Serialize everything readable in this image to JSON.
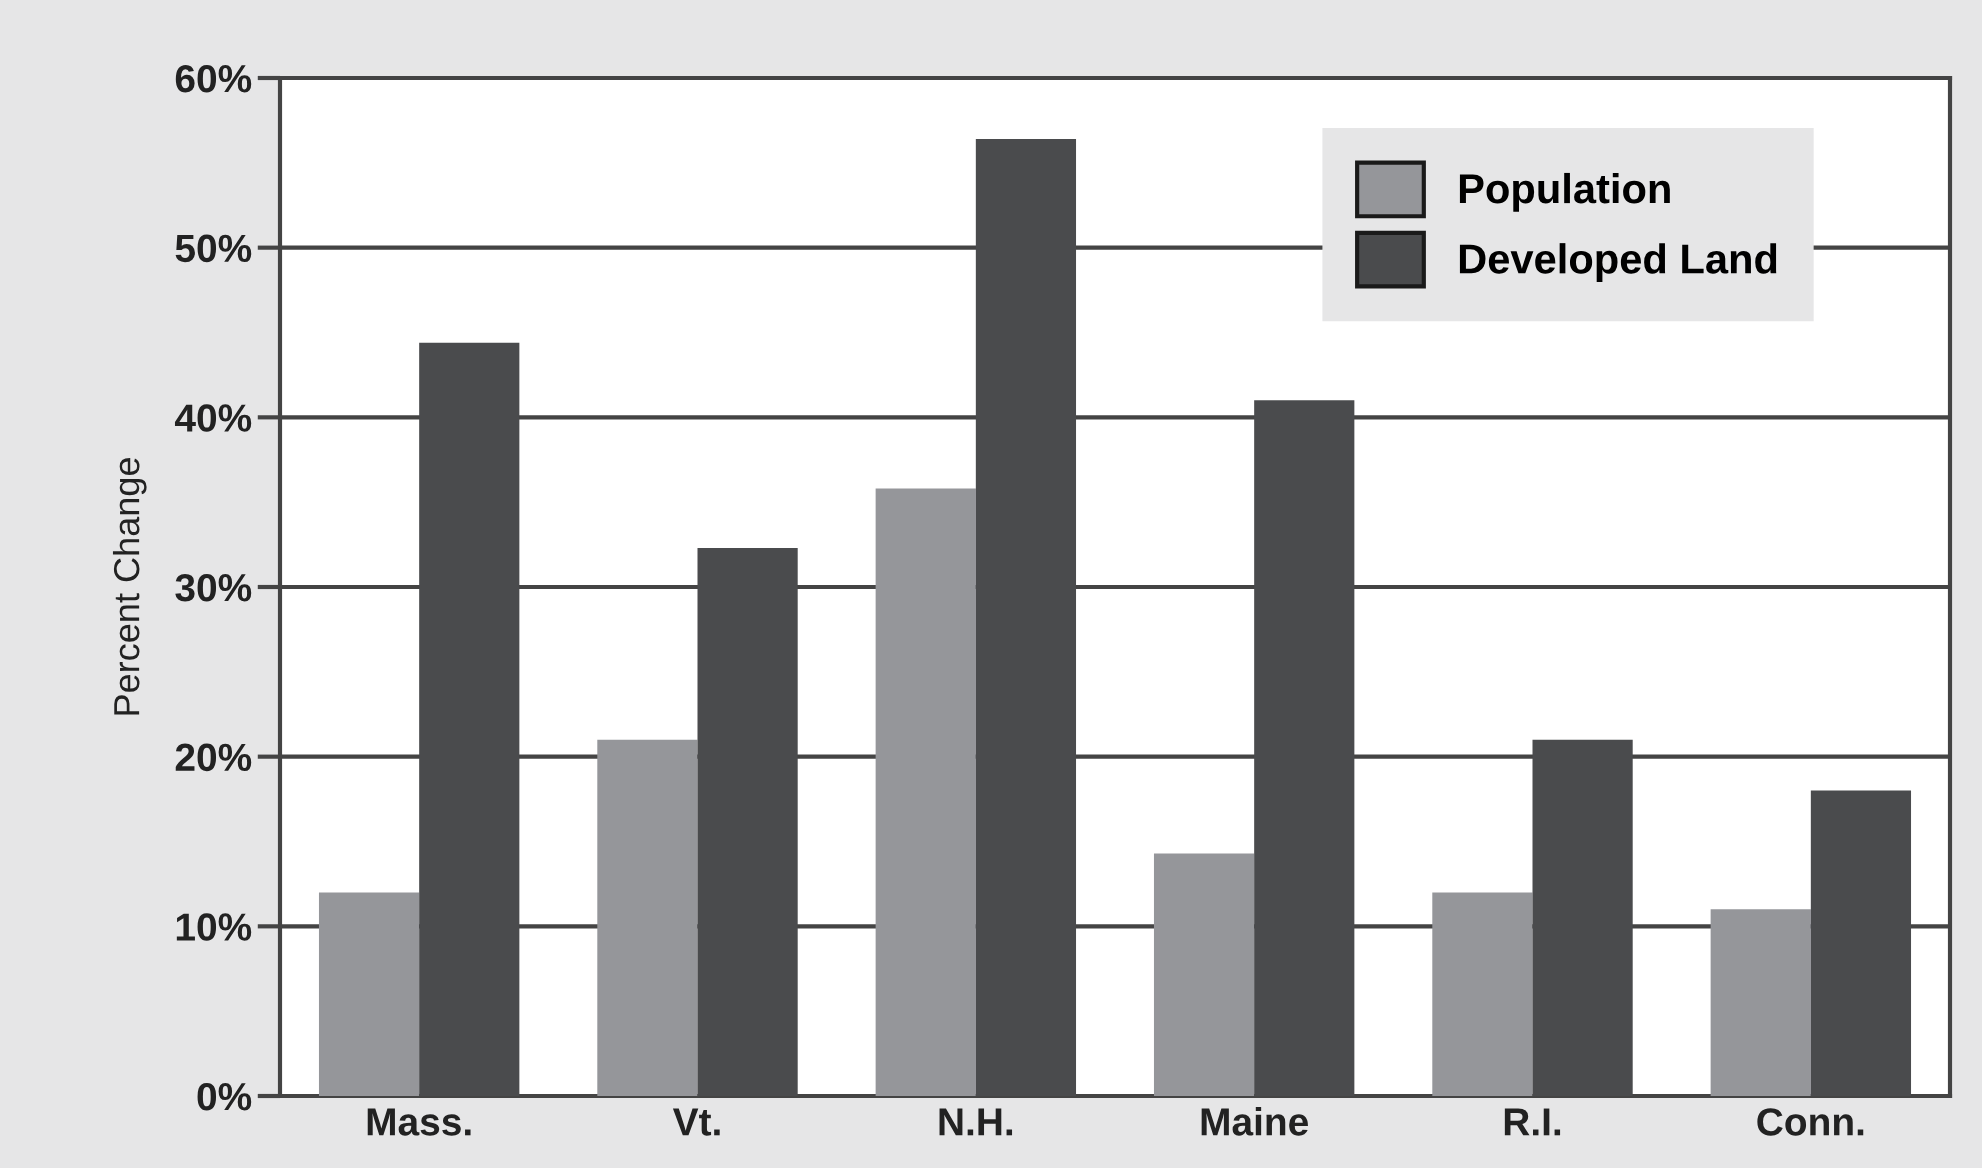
{
  "chart_data": {
    "type": "bar",
    "ylabel": "Percent Change",
    "categories": [
      "Mass.",
      "Vt.",
      "N.H.",
      "Maine",
      "R.I.",
      "Conn."
    ],
    "series": [
      {
        "name": "Population",
        "color": "#95969a",
        "values": [
          12,
          21,
          35.8,
          14.3,
          12,
          11
        ]
      },
      {
        "name": "Developed Land",
        "color": "#4a4b4d",
        "values": [
          44.4,
          32.3,
          56.4,
          41,
          21,
          18
        ]
      }
    ],
    "ylim": [
      0,
      60
    ],
    "yticks": [
      {
        "value": 0,
        "label": "0%"
      },
      {
        "value": 10,
        "label": "10%"
      },
      {
        "value": 20,
        "label": "20%"
      },
      {
        "value": 30,
        "label": "30%"
      },
      {
        "value": 40,
        "label": "40%"
      },
      {
        "value": 50,
        "label": "50%"
      },
      {
        "value": 60,
        "label": "60%"
      }
    ],
    "grid": "y",
    "legend": "top right"
  }
}
